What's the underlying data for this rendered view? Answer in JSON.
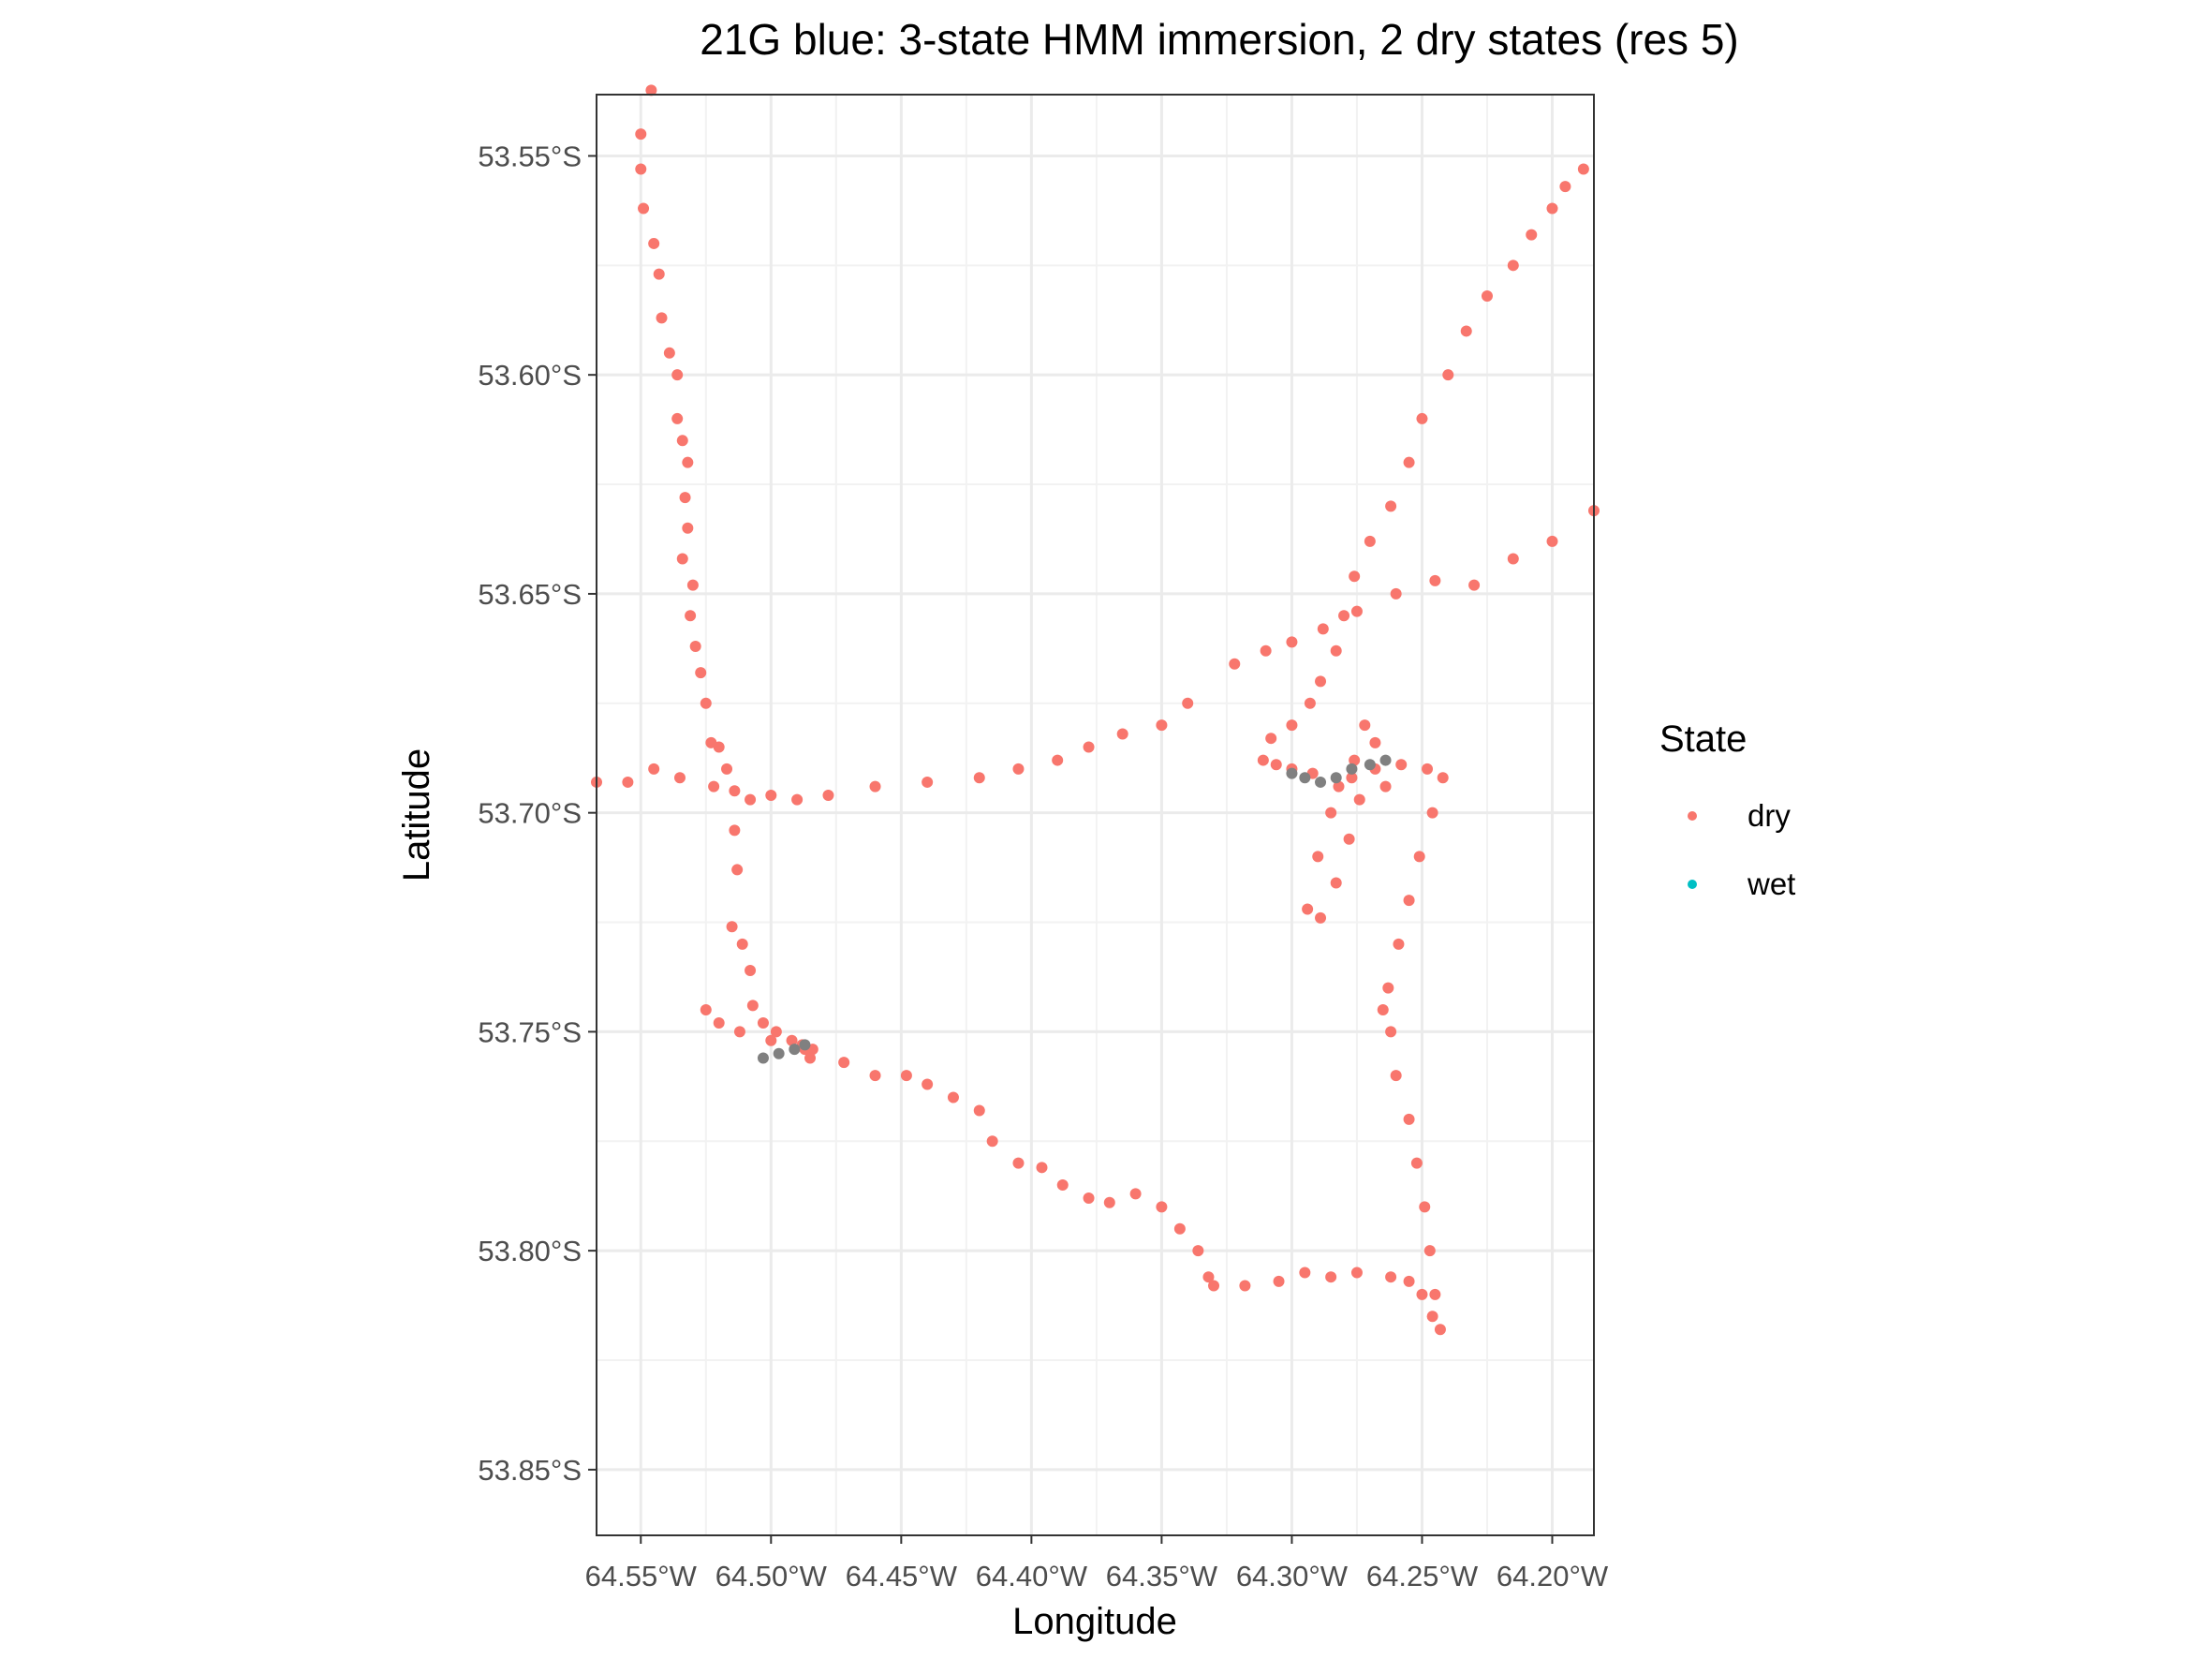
{
  "chart_data": {
    "type": "scatter",
    "title": "21G blue: 3-state HMM immersion, 2 dry states (res 5)",
    "xlabel": "Longitude",
    "ylabel": "Latitude",
    "xlim": [
      -64.567,
      -64.184
    ],
    "ylim": [
      -53.865,
      -53.536
    ],
    "x_ticks": [
      {
        "value": -64.55,
        "label": "64.55°W"
      },
      {
        "value": -64.5,
        "label": "64.50°W"
      },
      {
        "value": -64.45,
        "label": "64.45°W"
      },
      {
        "value": -64.4,
        "label": "64.40°W"
      },
      {
        "value": -64.35,
        "label": "64.35°W"
      },
      {
        "value": -64.3,
        "label": "64.30°W"
      },
      {
        "value": -64.25,
        "label": "64.25°W"
      },
      {
        "value": -64.2,
        "label": "64.20°W"
      }
    ],
    "y_ticks": [
      {
        "value": -53.55,
        "label": "53.55°S"
      },
      {
        "value": -53.6,
        "label": "53.60°S"
      },
      {
        "value": -53.65,
        "label": "53.65°S"
      },
      {
        "value": -53.7,
        "label": "53.70°S"
      },
      {
        "value": -53.75,
        "label": "53.75°S"
      },
      {
        "value": -53.8,
        "label": "53.80°S"
      },
      {
        "value": -53.85,
        "label": "53.85°S"
      }
    ],
    "grid": true,
    "legend": {
      "title": "State",
      "placement": "right",
      "entries": [
        {
          "label": "dry",
          "color": "#F8766D"
        },
        {
          "label": "wet",
          "color": "#00BFC4"
        }
      ]
    },
    "series": [
      {
        "name": "dry",
        "color": "#F8766D",
        "points": [
          [
            -64.546,
            -53.535
          ],
          [
            -64.55,
            -53.545
          ],
          [
            -64.55,
            -53.553
          ],
          [
            -64.549,
            -53.562
          ],
          [
            -64.545,
            -53.57
          ],
          [
            -64.543,
            -53.577
          ],
          [
            -64.542,
            -53.587
          ],
          [
            -64.539,
            -53.595
          ],
          [
            -64.536,
            -53.6
          ],
          [
            -64.536,
            -53.61
          ],
          [
            -64.534,
            -53.615
          ],
          [
            -64.532,
            -53.62
          ],
          [
            -64.533,
            -53.628
          ],
          [
            -64.532,
            -53.635
          ],
          [
            -64.534,
            -53.642
          ],
          [
            -64.53,
            -53.648
          ],
          [
            -64.531,
            -53.655
          ],
          [
            -64.529,
            -53.662
          ],
          [
            -64.527,
            -53.668
          ],
          [
            -64.525,
            -53.675
          ],
          [
            -64.523,
            -53.684
          ],
          [
            -64.52,
            -53.685
          ],
          [
            -64.517,
            -53.69
          ],
          [
            -64.514,
            -53.695
          ],
          [
            -64.514,
            -53.704
          ],
          [
            -64.513,
            -53.713
          ],
          [
            -64.515,
            -53.726
          ],
          [
            -64.511,
            -53.73
          ],
          [
            -64.508,
            -53.736
          ],
          [
            -64.507,
            -53.744
          ],
          [
            -64.503,
            -53.748
          ],
          [
            -64.498,
            -53.75
          ],
          [
            -64.488,
            -53.753
          ],
          [
            -64.484,
            -53.754
          ],
          [
            -64.472,
            -53.757
          ],
          [
            -64.46,
            -53.76
          ],
          [
            -64.448,
            -53.76
          ],
          [
            -64.44,
            -53.762
          ],
          [
            -64.43,
            -53.765
          ],
          [
            -64.42,
            -53.768
          ],
          [
            -64.415,
            -53.775
          ],
          [
            -64.405,
            -53.78
          ],
          [
            -64.396,
            -53.781
          ],
          [
            -64.388,
            -53.785
          ],
          [
            -64.378,
            -53.788
          ],
          [
            -64.37,
            -53.789
          ],
          [
            -64.36,
            -53.787
          ],
          [
            -64.35,
            -53.79
          ],
          [
            -64.343,
            -53.795
          ],
          [
            -64.336,
            -53.8
          ],
          [
            -64.332,
            -53.806
          ],
          [
            -64.33,
            -53.808
          ],
          [
            -64.318,
            -53.808
          ],
          [
            -64.305,
            -53.807
          ],
          [
            -64.295,
            -53.805
          ],
          [
            -64.285,
            -53.806
          ],
          [
            -64.275,
            -53.805
          ],
          [
            -64.262,
            -53.806
          ],
          [
            -64.255,
            -53.807
          ],
          [
            -64.25,
            -53.81
          ],
          [
            -64.246,
            -53.815
          ],
          [
            -64.243,
            -53.818
          ],
          [
            -64.245,
            -53.81
          ],
          [
            -64.247,
            -53.8
          ],
          [
            -64.249,
            -53.79
          ],
          [
            -64.252,
            -53.78
          ],
          [
            -64.255,
            -53.77
          ],
          [
            -64.26,
            -53.76
          ],
          [
            -64.262,
            -53.75
          ],
          [
            -64.265,
            -53.745
          ],
          [
            -64.263,
            -53.74
          ],
          [
            -64.259,
            -53.73
          ],
          [
            -64.255,
            -53.72
          ],
          [
            -64.251,
            -53.71
          ],
          [
            -64.246,
            -53.7
          ],
          [
            -64.242,
            -53.692
          ],
          [
            -64.248,
            -53.69
          ],
          [
            -64.258,
            -53.689
          ],
          [
            -64.268,
            -53.69
          ],
          [
            -64.277,
            -53.692
          ],
          [
            -64.282,
            -53.694
          ],
          [
            -64.292,
            -53.691
          ],
          [
            -64.3,
            -53.69
          ],
          [
            -64.306,
            -53.689
          ],
          [
            -64.311,
            -53.688
          ],
          [
            -64.308,
            -53.683
          ],
          [
            -64.3,
            -53.68
          ],
          [
            -64.293,
            -53.675
          ],
          [
            -64.289,
            -53.67
          ],
          [
            -64.283,
            -53.663
          ],
          [
            -64.28,
            -53.655
          ],
          [
            -64.276,
            -53.646
          ],
          [
            -64.27,
            -53.638
          ],
          [
            -64.262,
            -53.63
          ],
          [
            -64.255,
            -53.62
          ],
          [
            -64.25,
            -53.61
          ],
          [
            -64.24,
            -53.6
          ],
          [
            -64.233,
            -53.59
          ],
          [
            -64.225,
            -53.582
          ],
          [
            -64.215,
            -53.575
          ],
          [
            -64.208,
            -53.568
          ],
          [
            -64.2,
            -53.562
          ],
          [
            -64.195,
            -53.557
          ],
          [
            -64.188,
            -53.553
          ],
          [
            -64.184,
            -53.631
          ],
          [
            -64.2,
            -53.638
          ],
          [
            -64.215,
            -53.642
          ],
          [
            -64.23,
            -53.648
          ],
          [
            -64.245,
            -53.647
          ],
          [
            -64.26,
            -53.65
          ],
          [
            -64.275,
            -53.654
          ],
          [
            -64.288,
            -53.658
          ],
          [
            -64.3,
            -53.661
          ],
          [
            -64.31,
            -53.663
          ],
          [
            -64.322,
            -53.666
          ],
          [
            -64.34,
            -53.675
          ],
          [
            -64.35,
            -53.68
          ],
          [
            -64.365,
            -53.682
          ],
          [
            -64.378,
            -53.685
          ],
          [
            -64.39,
            -53.688
          ],
          [
            -64.405,
            -53.69
          ],
          [
            -64.42,
            -53.692
          ],
          [
            -64.44,
            -53.693
          ],
          [
            -64.46,
            -53.694
          ],
          [
            -64.478,
            -53.696
          ],
          [
            -64.49,
            -53.697
          ],
          [
            -64.5,
            -53.696
          ],
          [
            -64.508,
            -53.697
          ],
          [
            -64.522,
            -53.694
          ],
          [
            -64.535,
            -53.692
          ],
          [
            -64.545,
            -53.69
          ],
          [
            -64.555,
            -53.693
          ],
          [
            -64.567,
            -53.693
          ],
          [
            -64.285,
            -53.7
          ],
          [
            -64.29,
            -53.71
          ],
          [
            -64.294,
            -53.722
          ],
          [
            -64.289,
            -53.724
          ],
          [
            -64.283,
            -53.716
          ],
          [
            -64.278,
            -53.706
          ],
          [
            -64.274,
            -53.697
          ],
          [
            -64.276,
            -53.688
          ],
          [
            -64.272,
            -53.68
          ],
          [
            -64.268,
            -53.684
          ],
          [
            -64.264,
            -53.694
          ],
          [
            -64.525,
            -53.745
          ],
          [
            -64.52,
            -53.748
          ],
          [
            -64.512,
            -53.75
          ],
          [
            -64.5,
            -53.752
          ],
          [
            -64.492,
            -53.752
          ],
          [
            -64.487,
            -53.754
          ],
          [
            -64.485,
            -53.756
          ]
        ]
      },
      {
        "name": "wet",
        "color": "#00BFC4",
        "points": []
      }
    ],
    "unclassified": {
      "color": "#808080",
      "points": [
        [
          -64.503,
          -53.756
        ],
        [
          -64.497,
          -53.755
        ],
        [
          -64.491,
          -53.754
        ],
        [
          -64.487,
          -53.753
        ],
        [
          -64.3,
          -53.691
        ],
        [
          -64.295,
          -53.692
        ],
        [
          -64.289,
          -53.693
        ],
        [
          -64.283,
          -53.692
        ],
        [
          -64.277,
          -53.69
        ],
        [
          -64.27,
          -53.689
        ],
        [
          -64.264,
          -53.688
        ]
      ]
    }
  }
}
